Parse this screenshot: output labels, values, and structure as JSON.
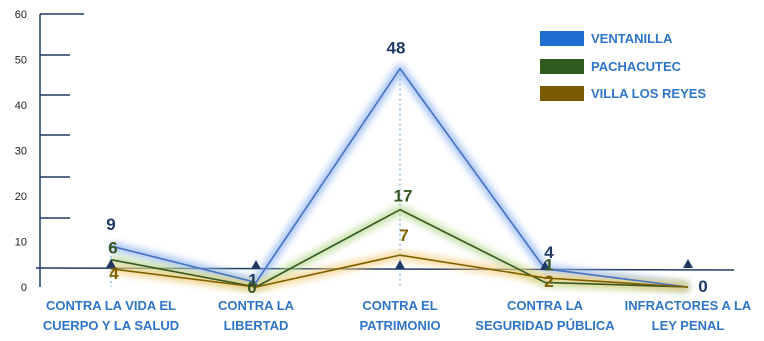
{
  "chart_data": {
    "type": "line",
    "categories": [
      [
        "CONTRA LA VIDA EL",
        "CUERPO Y LA SALUD"
      ],
      [
        "CONTRA LA",
        "LIBERTAD"
      ],
      [
        "CONTRA EL",
        "PATRIMONIO"
      ],
      [
        "CONTRA LA",
        "SEGURIDAD PÚBLICA"
      ],
      [
        "INFRACTORES A LA",
        "LEY PENAL"
      ]
    ],
    "series": [
      {
        "name": "VENTANILLA",
        "color": "#4472c4",
        "values": [
          9,
          1,
          48,
          4,
          0
        ],
        "labels": [
          "9",
          "1",
          "48",
          "4",
          "0"
        ]
      },
      {
        "name": "PACHACUTEC",
        "color": "#375623",
        "values": [
          6,
          0,
          17,
          1,
          0
        ],
        "labels": [
          "6",
          "0",
          "17",
          "1",
          ""
        ]
      },
      {
        "name": "VILLA LOS REYES",
        "color": "#7f6000",
        "values": [
          4,
          0,
          7,
          2,
          0
        ],
        "labels": [
          "4",
          "",
          "7",
          "2",
          ""
        ]
      }
    ],
    "y_ticks": [
      "0",
      "10",
      "20",
      "30",
      "40",
      "50",
      "60"
    ],
    "ylim": [
      0,
      60
    ],
    "title": "",
    "xlabel": "",
    "ylabel": "",
    "grid": false,
    "legend_position": "top-right",
    "legend_colors": [
      "#1f6fd0",
      "#2f5a1e",
      "#7a5a00"
    ],
    "label_colors": [
      "#1f3864",
      "#375623",
      "#7f6000"
    ]
  }
}
